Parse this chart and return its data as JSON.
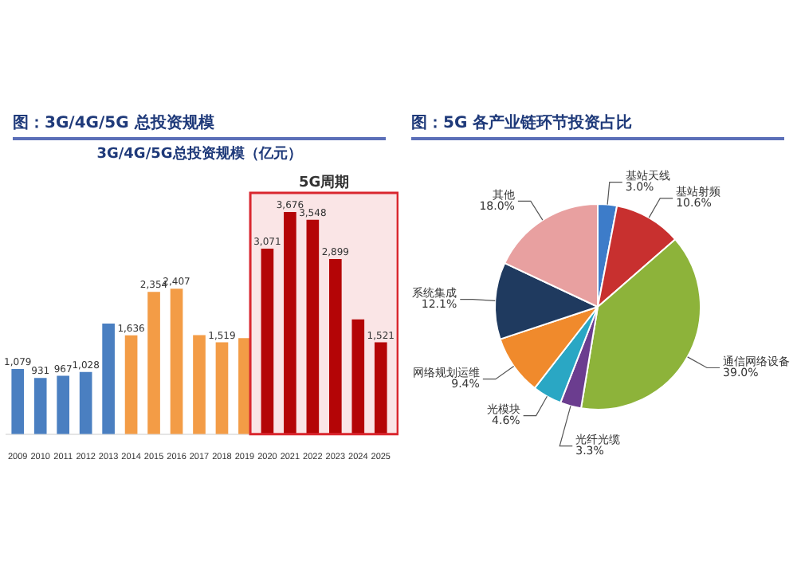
{
  "chart_data": [
    {
      "type": "bar",
      "title": "3G/4G/5G总投资规模（亿元）",
      "annotations": [
        "图：3G/4G/5G 总投资规模"
      ],
      "categories": [
        "2009",
        "2010",
        "2011",
        "2012",
        "2013",
        "2014",
        "2015",
        "2016",
        "2017",
        "2018",
        "2019",
        "2020",
        "2021",
        "2022",
        "2023",
        "2024",
        "2025"
      ],
      "values": [
        1079,
        931,
        967,
        1028,
        1830,
        1636,
        2354,
        2407,
        1640,
        1519,
        1590,
        3071,
        3676,
        3548,
        2899,
        1900,
        1521
      ],
      "colors": [
        "#4a7fc1",
        "#4a7fc1",
        "#4a7fc1",
        "#4a7fc1",
        "#4a7fc1",
        "#f39c46",
        "#f39c46",
        "#f39c46",
        "#f39c46",
        "#f39c46",
        "#f39c46",
        "#b00000",
        "#b00000",
        "#b00000",
        "#b00000",
        "#b00000",
        "#b00000"
      ],
      "value_labels": [
        "1,079",
        "931",
        "967",
        "1,028",
        null,
        "1,636",
        "2,354",
        "2,407",
        null,
        "1,519",
        null,
        "3,071",
        "3,676",
        "3,548",
        "2,899",
        null,
        "1,521"
      ],
      "tick_labels": "x",
      "grid": false,
      "legend": false,
      "bands": [
        {
          "axis": "x",
          "from": "2020",
          "to": "2025",
          "label": "5G周期",
          "color": "#d9262e"
        }
      ]
    },
    {
      "type": "pie",
      "title": "图：5G 各产业链环节投资占比",
      "categories": [
        "基站天线",
        "基站射频",
        "通信网络设备",
        "光纤光缆",
        "光模块",
        "网络规划运维",
        "系统集成",
        "其他"
      ],
      "values": [
        3.0,
        10.6,
        39.0,
        3.3,
        4.6,
        9.4,
        12.1,
        18.0
      ],
      "colors": [
        "#3d7cc9",
        "#c8302f",
        "#8db33a",
        "#6b3d8f",
        "#2aa7c4",
        "#f08a2c",
        "#1f3a5f",
        "#e8a0a0"
      ],
      "value_labels": [
        "3.0%",
        "10.6%",
        "39.0%",
        "3.3%",
        "4.6%",
        "9.4%",
        "12.1%",
        "18.0%"
      ],
      "legend": false
    }
  ]
}
